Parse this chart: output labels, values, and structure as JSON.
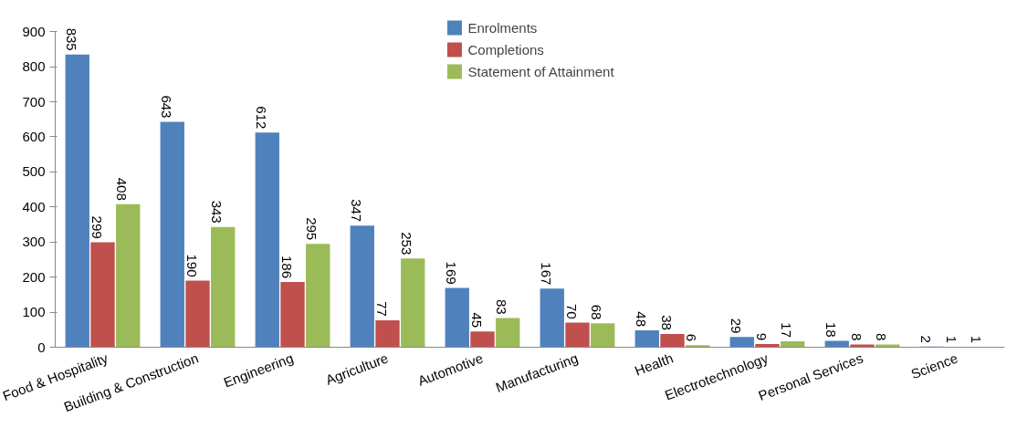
{
  "chart_data": {
    "type": "bar",
    "categories": [
      "Food & Hospitality",
      "Building & Construction",
      "Engineering",
      "Agriculture",
      "Automotive",
      "Manufacturing",
      "Health",
      "Electrotechnology",
      "Personal Services",
      "Science"
    ],
    "series": [
      {
        "name": "Enrolments",
        "color": "#4f81bd",
        "values": [
          835,
          643,
          612,
          347,
          169,
          167,
          48,
          29,
          18,
          2
        ]
      },
      {
        "name": "Completions",
        "color": "#c0504d",
        "values": [
          299,
          190,
          186,
          77,
          45,
          70,
          38,
          9,
          8,
          1
        ]
      },
      {
        "name": "Statement of Attainment",
        "color": "#9bbb59",
        "values": [
          408,
          343,
          295,
          253,
          83,
          68,
          6,
          17,
          8,
          1
        ]
      }
    ],
    "ylim": [
      0,
      900
    ],
    "yticks": [
      0,
      100,
      200,
      300,
      400,
      500,
      600,
      700,
      800,
      900
    ],
    "grid": false,
    "legend": "top",
    "data_labels": true
  }
}
